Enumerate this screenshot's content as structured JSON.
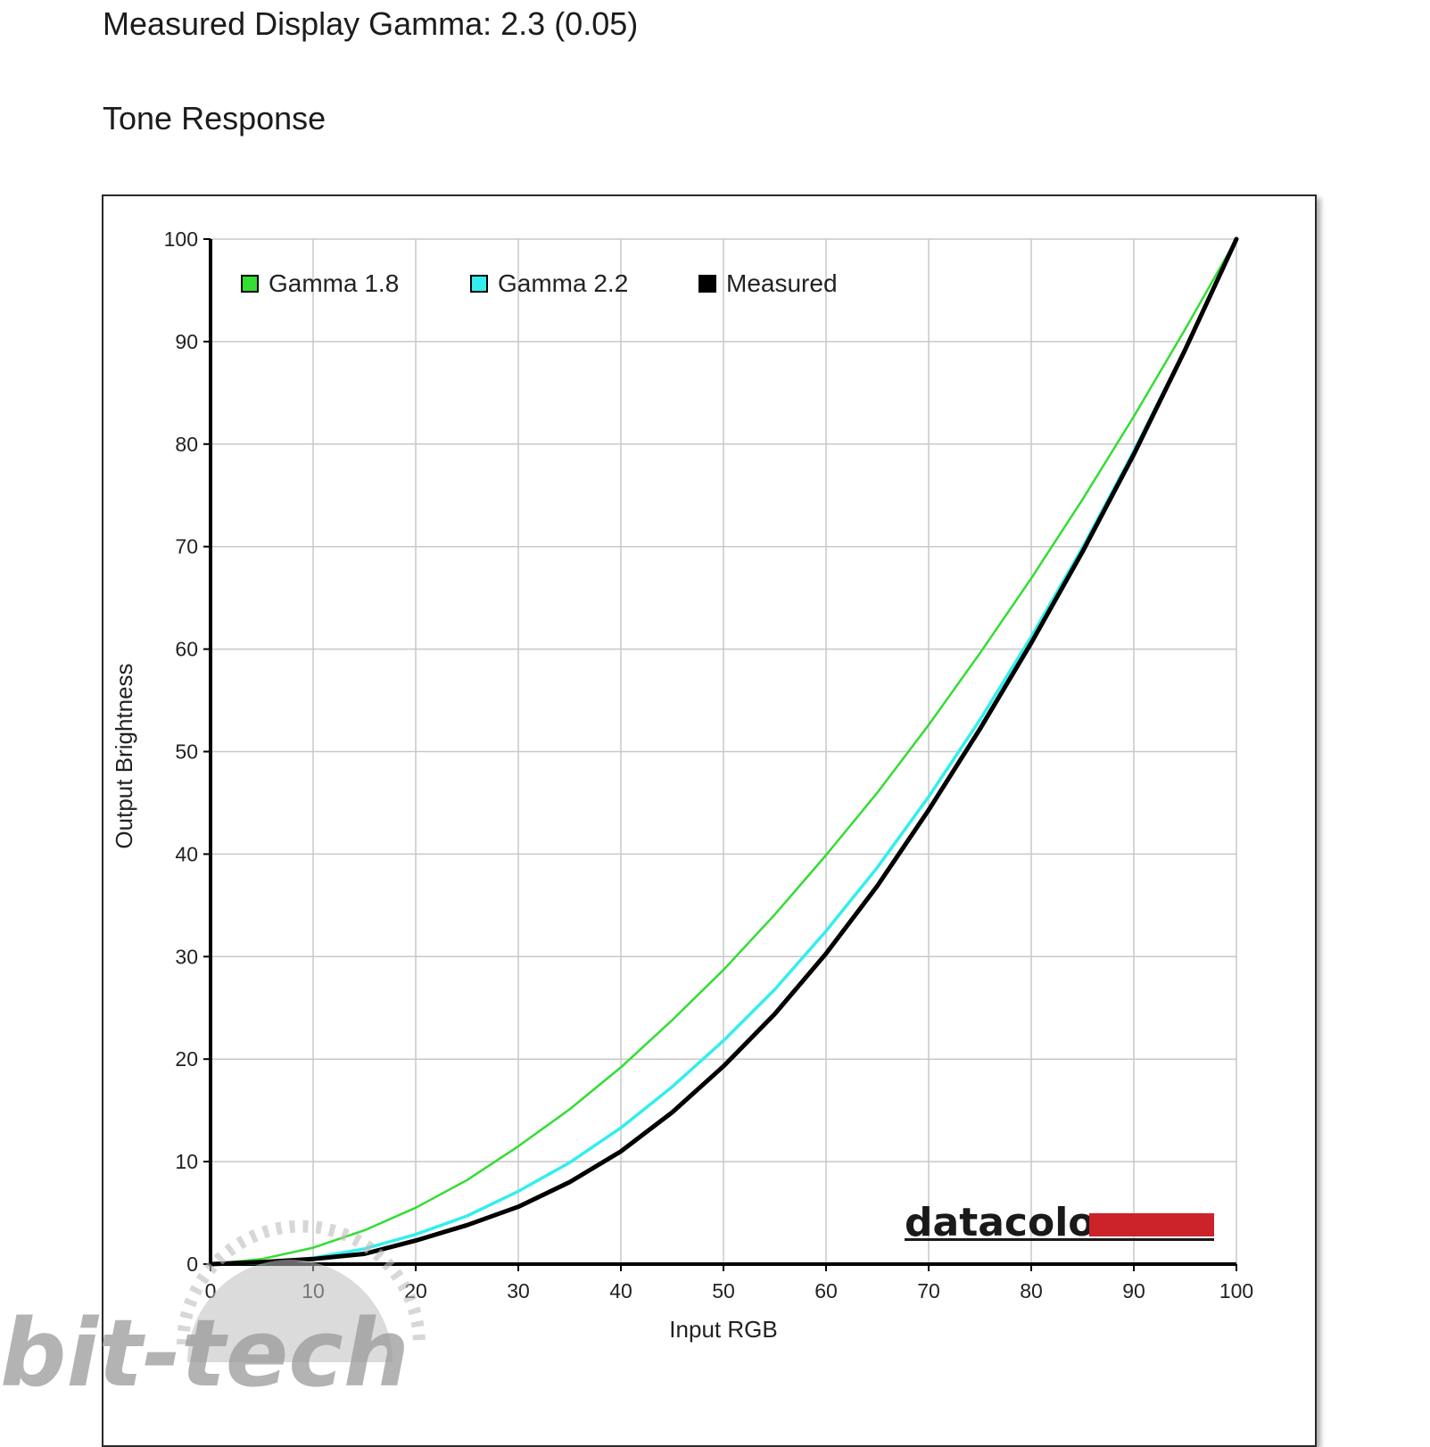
{
  "page": {
    "heading_gamma": "Measured Display Gamma: 2.3 (0.05)",
    "heading_tone": "Tone Response"
  },
  "chart_data": {
    "type": "line",
    "title": "",
    "xlabel": "Input RGB",
    "ylabel": "Output Brightness",
    "xlim": [
      0,
      100
    ],
    "ylim": [
      0,
      100
    ],
    "xticks": [
      0,
      10,
      20,
      30,
      40,
      50,
      60,
      70,
      80,
      90,
      100
    ],
    "yticks": [
      0,
      10,
      20,
      30,
      40,
      50,
      60,
      70,
      80,
      90,
      100
    ],
    "grid": true,
    "legend_position": "top-left",
    "series": [
      {
        "name": "Gamma 1.8",
        "color": "#33dd33",
        "x": [
          0,
          5,
          10,
          15,
          20,
          25,
          30,
          35,
          40,
          45,
          50,
          55,
          60,
          65,
          70,
          75,
          80,
          85,
          90,
          95,
          100
        ],
        "y": [
          0,
          0.5,
          1.6,
          3.3,
          5.5,
          8.2,
          11.5,
          15.1,
          19.2,
          23.8,
          28.7,
          34.1,
          39.9,
          46.0,
          52.6,
          59.6,
          66.9,
          74.6,
          82.7,
          91.2,
          100
        ]
      },
      {
        "name": "Gamma 2.2",
        "color": "#33eeee",
        "x": [
          0,
          5,
          10,
          15,
          20,
          25,
          30,
          35,
          40,
          45,
          50,
          55,
          60,
          65,
          70,
          75,
          80,
          85,
          90,
          95,
          100
        ],
        "y": [
          0,
          0.1,
          0.6,
          1.5,
          2.9,
          4.7,
          7.1,
          9.9,
          13.3,
          17.3,
          21.8,
          26.8,
          32.5,
          38.7,
          45.6,
          53.1,
          61.2,
          69.9,
          79.3,
          89.3,
          100
        ]
      },
      {
        "name": "Measured",
        "color": "#000000",
        "x": [
          0,
          5,
          10,
          15,
          20,
          25,
          30,
          35,
          40,
          45,
          50,
          55,
          60,
          65,
          70,
          75,
          80,
          85,
          90,
          95,
          100
        ],
        "y": [
          0,
          0.2,
          0.5,
          1.0,
          2.3,
          3.8,
          5.6,
          8.0,
          11.0,
          14.8,
          19.3,
          24.4,
          30.3,
          36.9,
          44.3,
          52.2,
          60.6,
          69.5,
          79.0,
          89.2,
          100
        ]
      }
    ]
  },
  "logo": {
    "text": "datacolor",
    "bar_color": "#cc2229"
  },
  "watermark": {
    "text": "bit-tech"
  }
}
